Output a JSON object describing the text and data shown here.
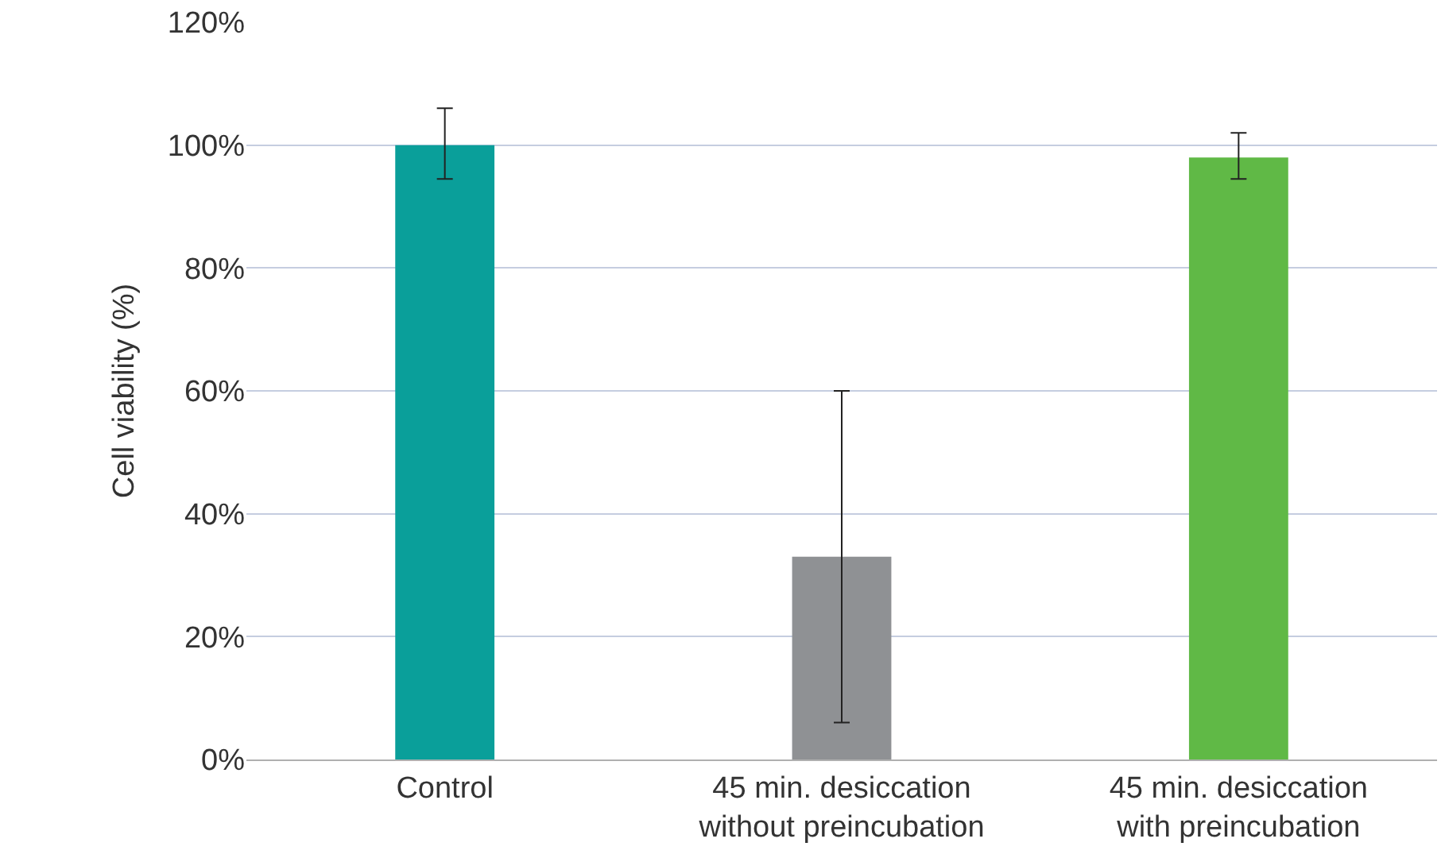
{
  "chart_data": {
    "type": "bar",
    "ylabel": "Cell viability (%)",
    "categories": [
      "Control",
      "45 min. desiccation\nwithout preincubation",
      "45 min. desiccation\nwith preincubation"
    ],
    "values": [
      100,
      33,
      98
    ],
    "colors": [
      "#0a9f9a",
      "#8f9194",
      "#60b946"
    ],
    "errors": [
      [
        94.5,
        106
      ],
      [
        6,
        60
      ],
      [
        94.5,
        102
      ]
    ],
    "ylim": [
      0,
      120
    ],
    "yticks": [
      {
        "value": 0,
        "label": "0%"
      },
      {
        "value": 20,
        "label": "20%"
      },
      {
        "value": 40,
        "label": "40%"
      },
      {
        "value": 60,
        "label": "60%"
      },
      {
        "value": 80,
        "label": "80%"
      },
      {
        "value": 100,
        "label": "100%"
      },
      {
        "value": 120,
        "label": "120%"
      }
    ],
    "grid": "y"
  }
}
